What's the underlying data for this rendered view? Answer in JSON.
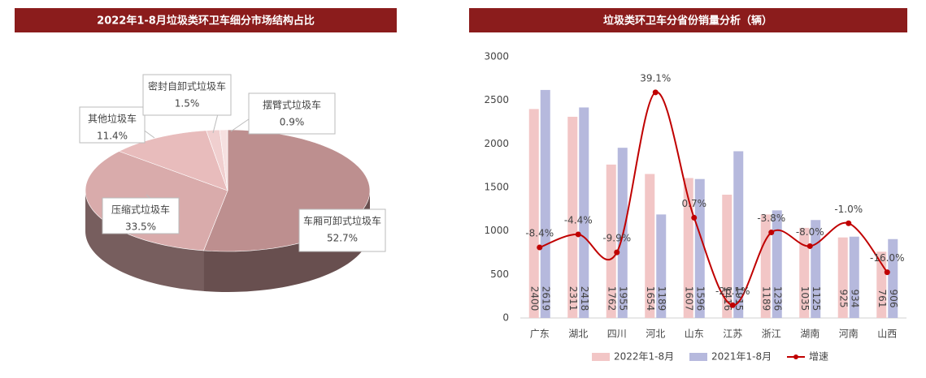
{
  "chart_data": [
    {
      "type": "pie",
      "title": "2022年1-8月垃圾类环卫车细分市场结构占比",
      "categories": [
        "车厢可卸式垃圾车",
        "压缩式垃圾车",
        "其他垃圾车",
        "密封自卸式垃圾车",
        "摆臂式垃圾车"
      ],
      "values": [
        52.7,
        33.5,
        11.4,
        1.5,
        0.9
      ],
      "value_labels": [
        "52.7%",
        "33.5%",
        "11.4%",
        "1.5%",
        "0.9%"
      ],
      "colors": [
        "#bd8f8f",
        "#d9abab",
        "#e8bcbc",
        "#f0cfcf",
        "#f6e0e0"
      ]
    },
    {
      "type": "bar",
      "title": "垃圾类环卫车分省份销量分析（辆）",
      "categories": [
        "广东",
        "湖北",
        "四川",
        "河北",
        "山东",
        "江苏",
        "浙江",
        "湖南",
        "河南",
        "山西"
      ],
      "series": [
        {
          "name": "2022年1-8月",
          "color": "#f2c6c6",
          "values": [
            2400,
            2311,
            1762,
            1654,
            1607,
            1416,
            1189,
            1035,
            925,
            761
          ]
        },
        {
          "name": "2021年1-8月",
          "color": "#b6b9dd",
          "values": [
            2619,
            2418,
            1955,
            1189,
            1596,
            1915,
            1236,
            1125,
            934,
            906
          ]
        },
        {
          "name": "增速",
          "type": "line",
          "axis": "y2",
          "color": "#c00000",
          "values": [
            -8.4,
            -4.4,
            -9.9,
            39.1,
            0.7,
            -26.1,
            -3.8,
            -8.0,
            -1.0,
            -16.0
          ],
          "value_labels": [
            "-8.4%",
            "-4.4%",
            "-9.9%",
            "39.1%",
            "0.7%",
            "-26.1%",
            "-3.8%",
            "-8.0%",
            "-1.0%",
            "-16.0%"
          ]
        }
      ],
      "ylim": [
        0,
        3000
      ],
      "yticks": [
        0,
        500,
        1000,
        1500,
        2000,
        2500,
        3000
      ],
      "y2lim": [
        -30,
        50
      ],
      "legend": "bottom"
    }
  ]
}
